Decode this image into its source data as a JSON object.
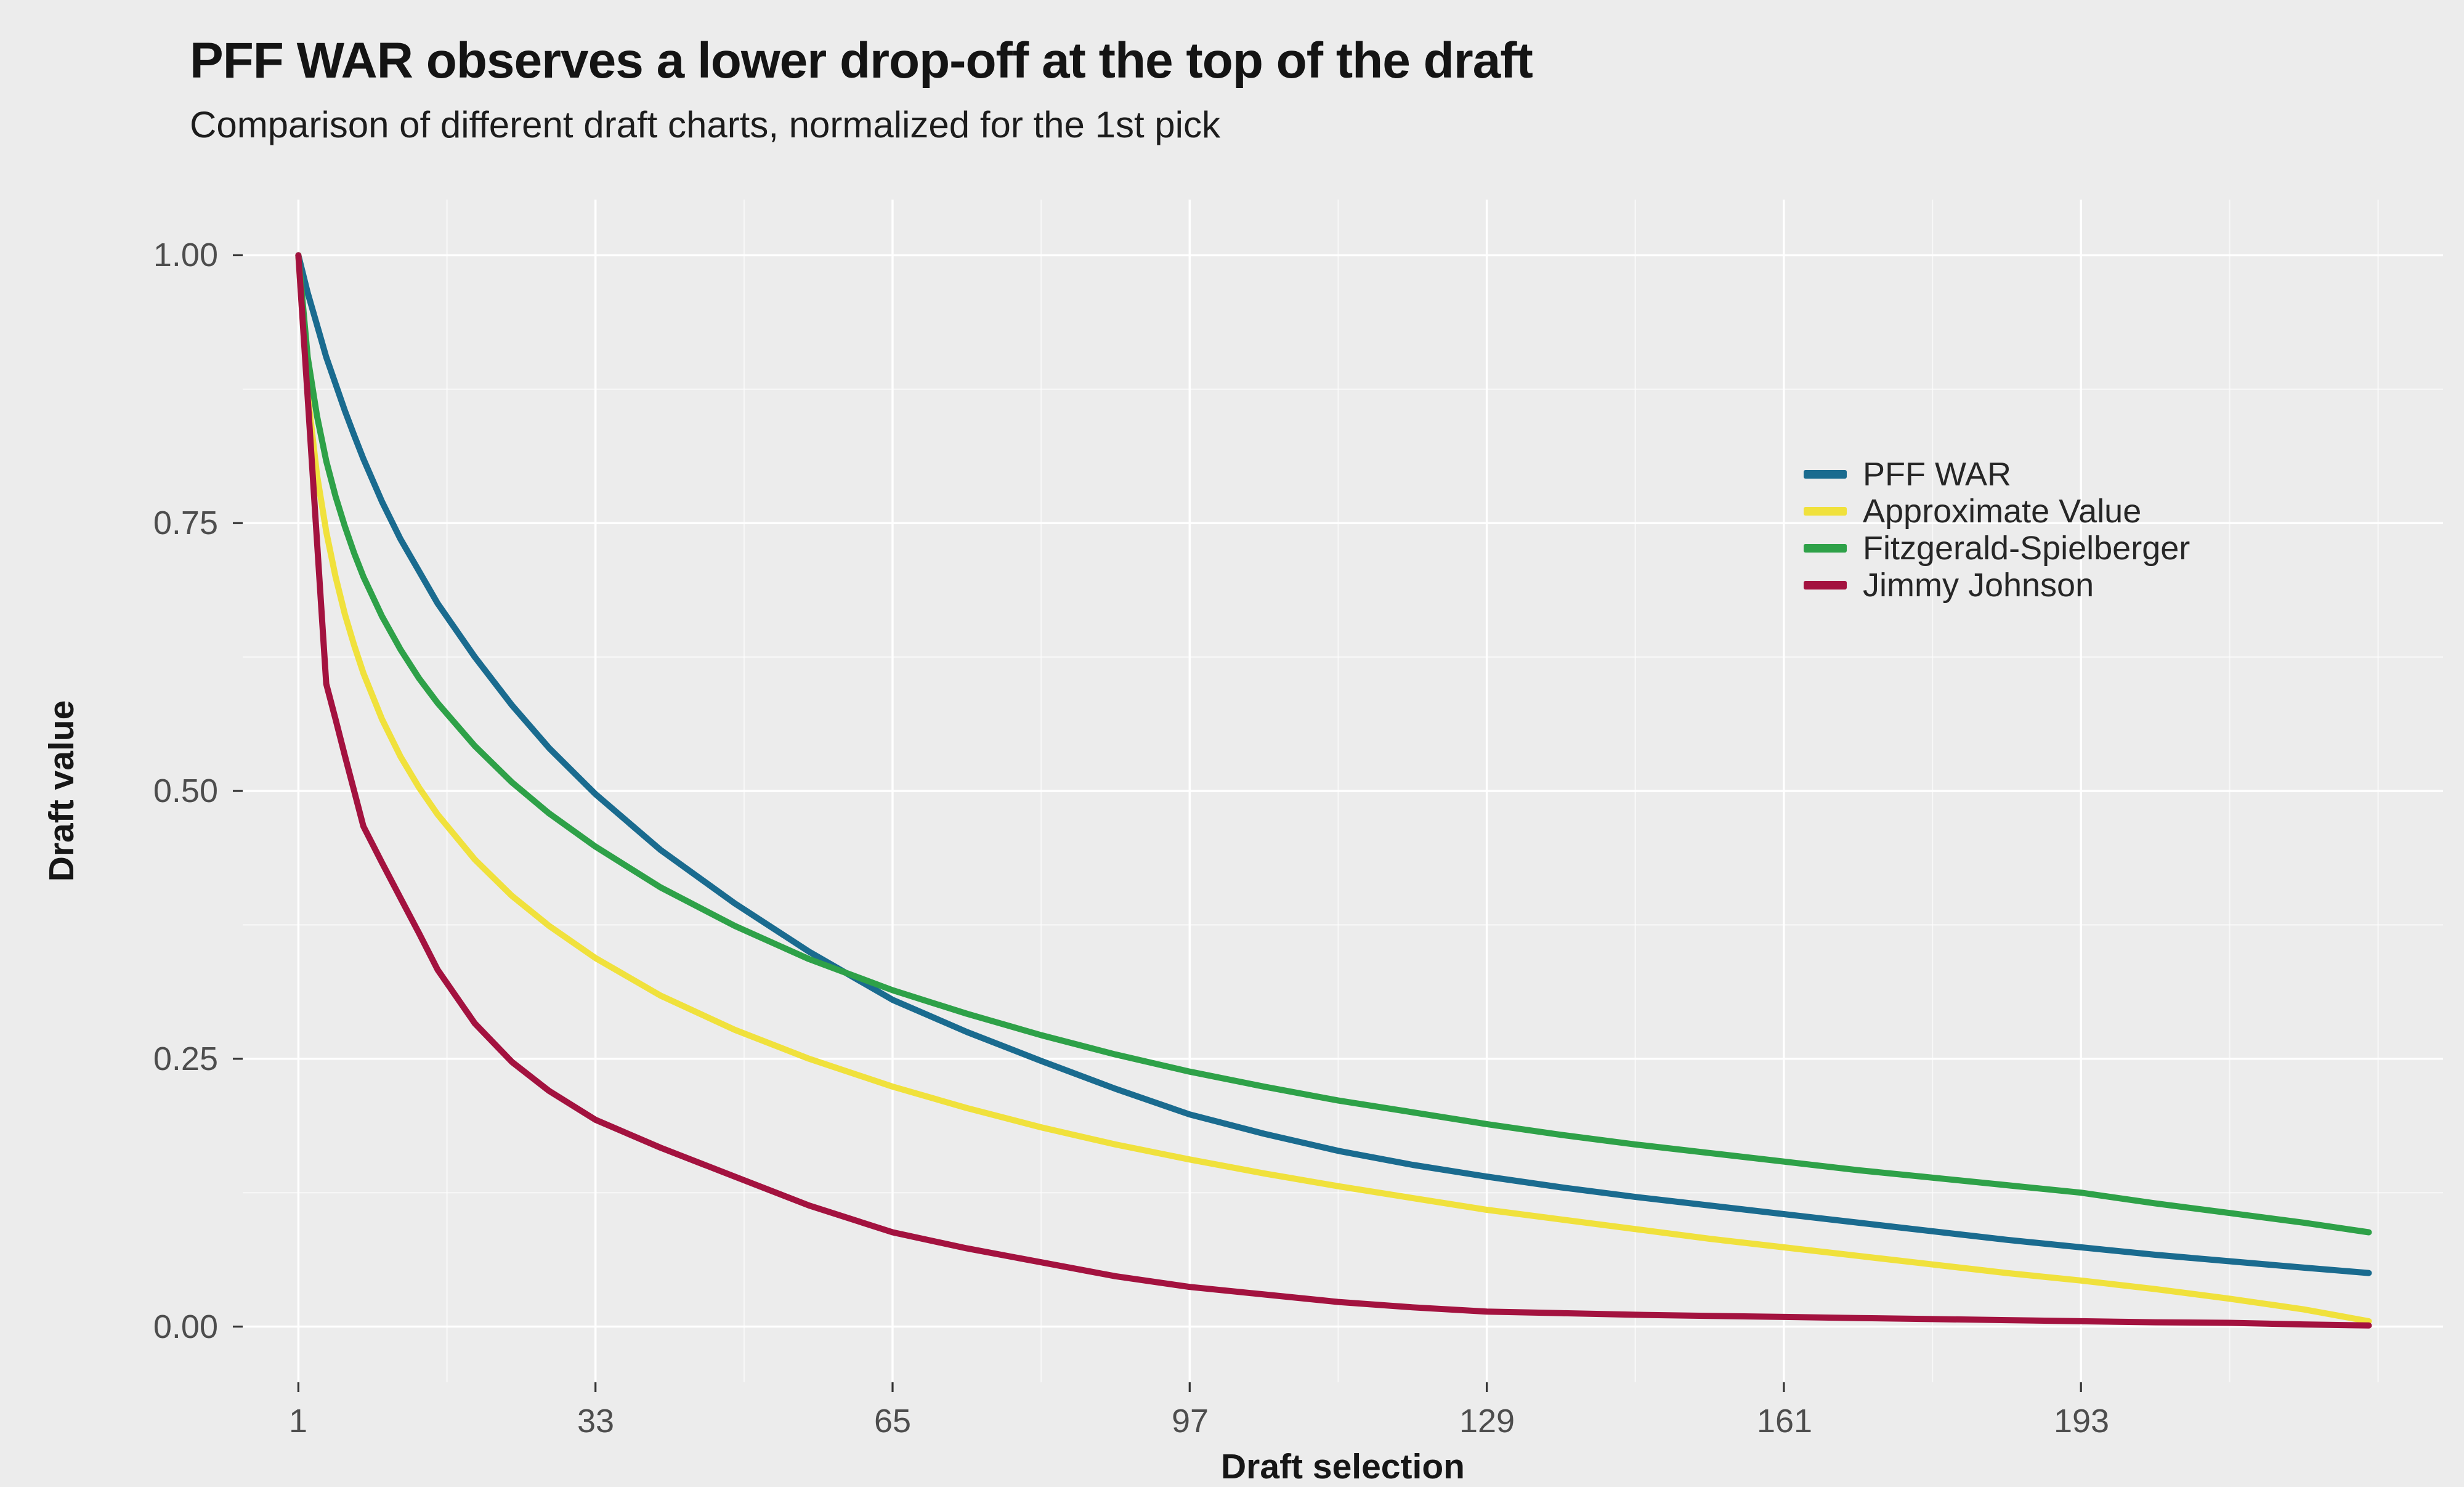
{
  "chart_data": {
    "type": "line",
    "title": "PFF WAR observes a lower drop-off at the top of the draft",
    "subtitle": "Comparison of different draft charts, normalized for the 1st pick",
    "xlabel": "Draft selection",
    "ylabel": "Draft value",
    "x_ticks": [
      1,
      33,
      65,
      97,
      129,
      161,
      193
    ],
    "x_tick_labels": [
      "1",
      "33",
      "65",
      "97",
      "129",
      "161",
      "193"
    ],
    "x_minor_ticks": [
      17,
      49,
      81,
      113,
      145,
      177,
      209,
      225
    ],
    "y_ticks": [
      0,
      0.25,
      0.5,
      0.75,
      1.0
    ],
    "y_tick_labels": [
      "0.00",
      "0.25",
      "0.50",
      "0.75",
      "1.00"
    ],
    "y_minor_ticks": [
      0.125,
      0.375,
      0.625,
      0.875
    ],
    "x_domain": [
      -5,
      232
    ],
    "y_domain": [
      -0.052,
      1.052
    ],
    "legend_position": "inside-top-right",
    "grid": "white-on-gray",
    "x": [
      1,
      2,
      3,
      4,
      5,
      6,
      7,
      8,
      10,
      12,
      14,
      16,
      20,
      24,
      28,
      33,
      40,
      48,
      56,
      65,
      73,
      81,
      89,
      97,
      105,
      113,
      121,
      129,
      137,
      145,
      153,
      161,
      169,
      177,
      185,
      193,
      201,
      209,
      217,
      224
    ],
    "series": [
      {
        "name": "PFF WAR",
        "color": "#1A6B8F",
        "values": [
          1.0,
          0.965,
          0.935,
          0.905,
          0.88,
          0.855,
          0.832,
          0.81,
          0.77,
          0.735,
          0.705,
          0.675,
          0.625,
          0.58,
          0.54,
          0.497,
          0.445,
          0.395,
          0.35,
          0.305,
          0.275,
          0.248,
          0.222,
          0.198,
          0.18,
          0.164,
          0.151,
          0.14,
          0.13,
          0.121,
          0.113,
          0.105,
          0.097,
          0.089,
          0.081,
          0.074,
          0.067,
          0.061,
          0.055,
          0.05
        ]
      },
      {
        "name": "Approximate Value",
        "color": "#F0E13C",
        "values": [
          1.0,
          0.87,
          0.795,
          0.742,
          0.7,
          0.665,
          0.636,
          0.61,
          0.567,
          0.532,
          0.503,
          0.478,
          0.436,
          0.402,
          0.374,
          0.344,
          0.309,
          0.277,
          0.25,
          0.224,
          0.204,
          0.186,
          0.17,
          0.156,
          0.143,
          0.131,
          0.12,
          0.109,
          0.1,
          0.091,
          0.082,
          0.074,
          0.066,
          0.058,
          0.05,
          0.043,
          0.035,
          0.026,
          0.016,
          0.005
        ]
      },
      {
        "name": "Fitzgerald-Spielberger",
        "color": "#2EA148",
        "values": [
          1.0,
          0.905,
          0.85,
          0.808,
          0.775,
          0.747,
          0.722,
          0.7,
          0.663,
          0.632,
          0.605,
          0.582,
          0.542,
          0.508,
          0.479,
          0.448,
          0.41,
          0.374,
          0.343,
          0.314,
          0.292,
          0.272,
          0.254,
          0.238,
          0.224,
          0.211,
          0.2,
          0.189,
          0.179,
          0.17,
          0.162,
          0.154,
          0.146,
          0.139,
          0.132,
          0.125,
          0.115,
          0.106,
          0.097,
          0.088
        ]
      },
      {
        "name": "Jimmy Johnson",
        "color": "#A3123F",
        "values": [
          1.0,
          0.867,
          0.733,
          0.6,
          0.567,
          0.533,
          0.5,
          0.467,
          0.433,
          0.4,
          0.367,
          0.333,
          0.283,
          0.247,
          0.22,
          0.193,
          0.167,
          0.14,
          0.113,
          0.088,
          0.073,
          0.06,
          0.047,
          0.037,
          0.03,
          0.023,
          0.018,
          0.014,
          0.0125,
          0.011,
          0.01,
          0.009,
          0.008,
          0.007,
          0.006,
          0.005,
          0.004,
          0.0035,
          0.002,
          0.001
        ]
      }
    ]
  },
  "colors": {
    "background": "#ECECEC",
    "grid_major": "#FFFFFF",
    "grid_minor": "#FFFFFF",
    "tick_label": "#4D4D4D",
    "title": "#141414",
    "axis_title": "#161616",
    "legend_text": "#262626",
    "axis_tick": "#333333"
  }
}
